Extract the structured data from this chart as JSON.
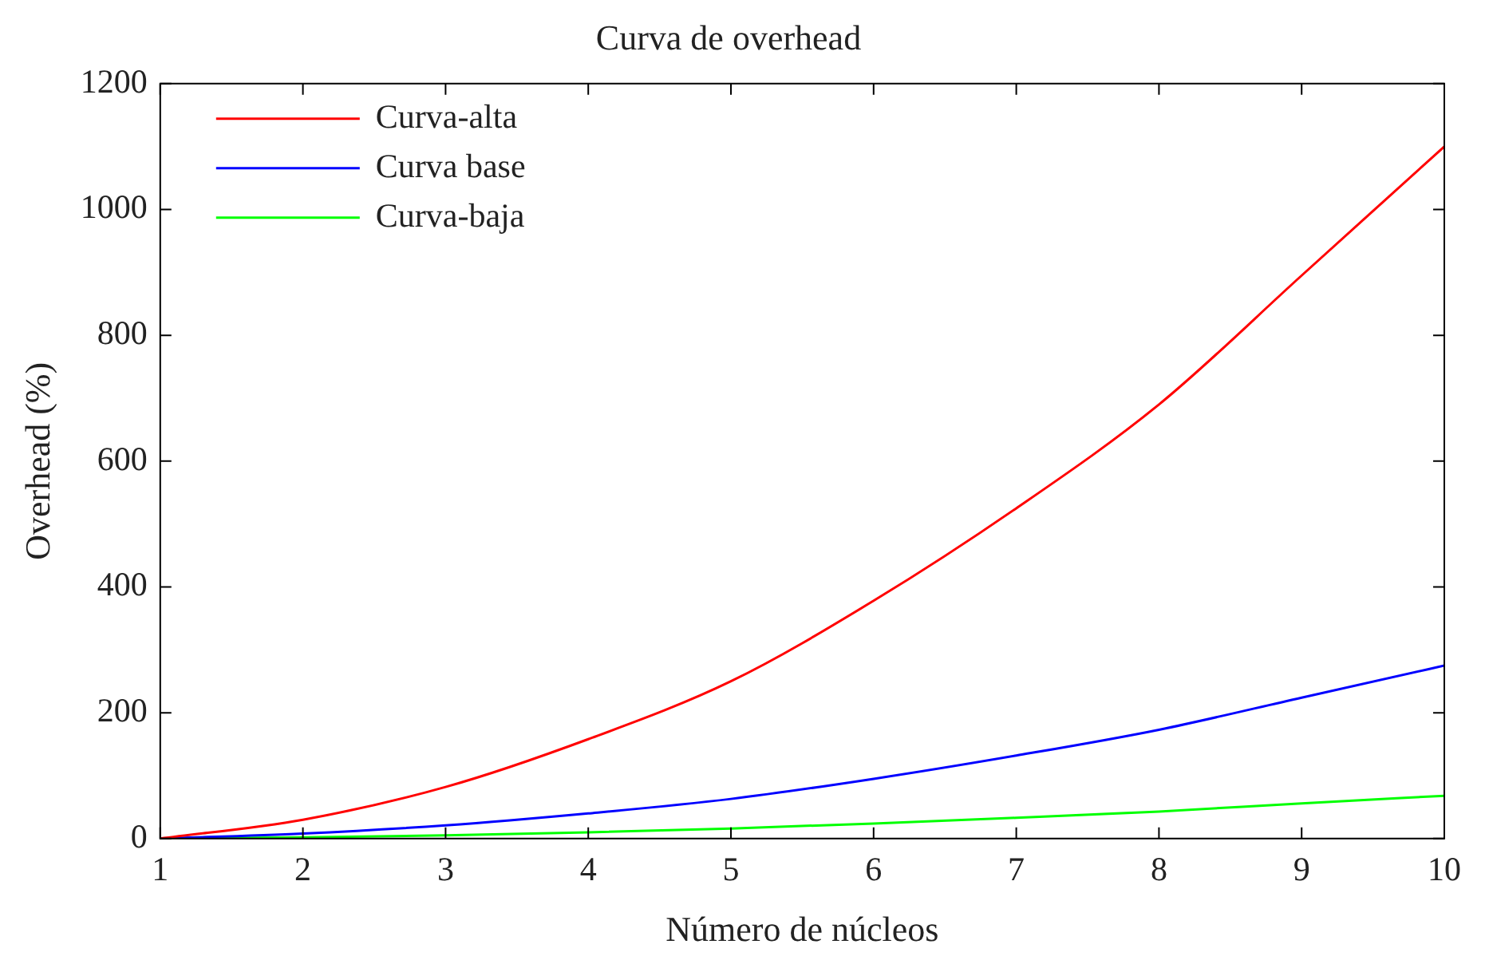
{
  "chart_data": {
    "type": "line",
    "title": "Curva de overhead",
    "xlabel": "Número de núcleos",
    "ylabel": "Overhead (%)",
    "x": [
      1,
      2,
      3,
      4,
      5,
      6,
      7,
      8,
      9,
      10
    ],
    "series": [
      {
        "name": "Curva-alta",
        "color": "#ff0000",
        "values": [
          0,
          30,
          82,
          158,
          250,
          378,
          525,
          690,
          895,
          1100
        ]
      },
      {
        "name": "Curva base",
        "color": "#0000ff",
        "values": [
          0,
          8,
          21,
          40,
          63,
          95,
          132,
          173,
          224,
          275
        ]
      },
      {
        "name": "Curva-baja",
        "color": "#00ff00",
        "values": [
          0,
          2,
          5,
          10,
          16,
          24,
          33,
          43,
          56,
          68
        ]
      }
    ],
    "xlim": [
      1,
      10
    ],
    "xticks": [
      1,
      2,
      3,
      4,
      5,
      6,
      7,
      8,
      9,
      10
    ],
    "ylim": [
      0,
      1200
    ],
    "yticks": [
      0,
      200,
      400,
      600,
      800,
      1000,
      1200
    ],
    "grid": false,
    "legend": "top left",
    "marker": "none",
    "line_style": "solid"
  }
}
